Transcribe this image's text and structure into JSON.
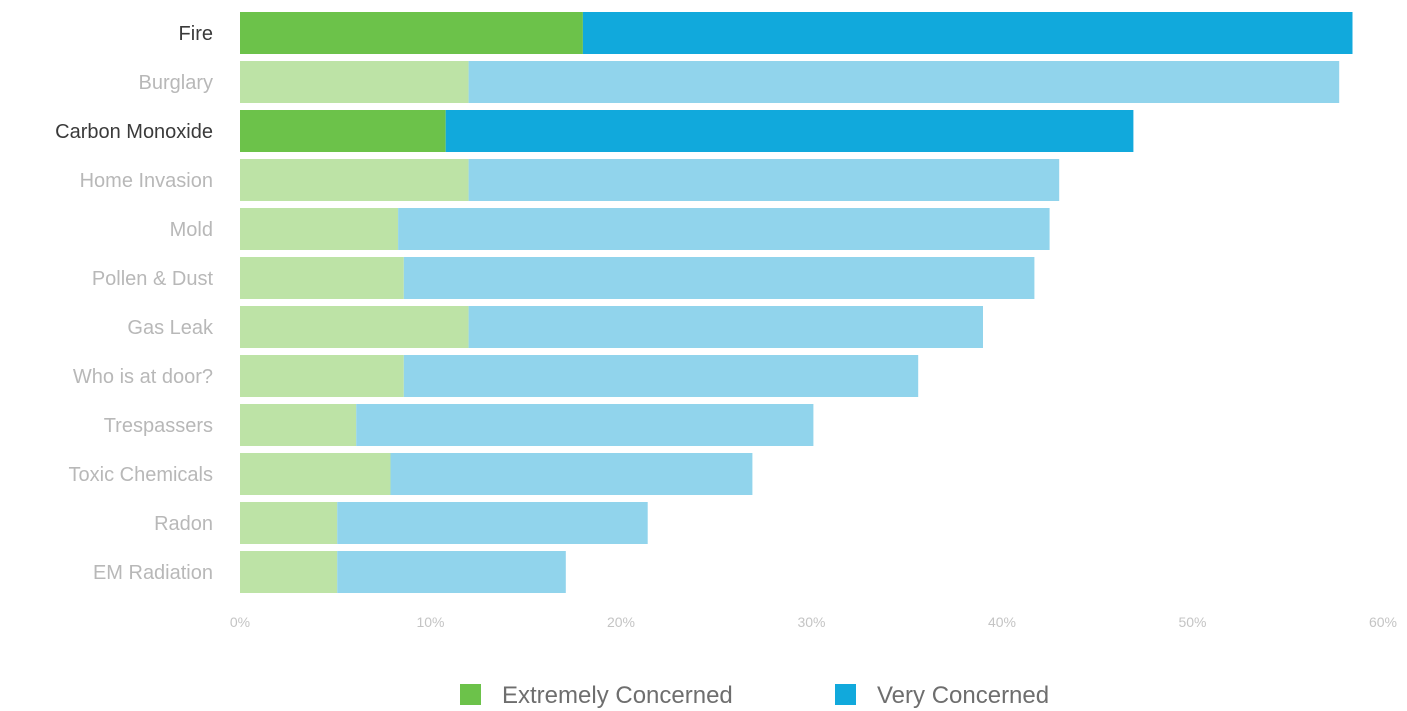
{
  "chart_data": {
    "type": "bar",
    "orientation": "horizontal",
    "stacked": true,
    "categories": [
      "Fire",
      "Burglary",
      "Carbon Monoxide",
      "Home Invasion",
      "Mold",
      "Pollen & Dust",
      "Gas Leak",
      "Who is at door?",
      "Trespassers",
      "Toxic Chemicals",
      "Radon",
      "EM Radiation"
    ],
    "highlighted": [
      "Fire",
      "Carbon Monoxide"
    ],
    "series": [
      {
        "name": "Extremely Concerned",
        "values": [
          18.0,
          12.0,
          10.8,
          12.0,
          8.3,
          8.6,
          12.0,
          8.6,
          6.1,
          7.9,
          5.1,
          5.1
        ]
      },
      {
        "name": "Very Concerned",
        "values": [
          40.4,
          45.7,
          36.1,
          31.0,
          34.2,
          33.1,
          27.0,
          27.0,
          24.0,
          19.0,
          16.3,
          12.0
        ]
      }
    ],
    "xlim": [
      0,
      60
    ],
    "x_ticks": [
      "0%",
      "10%",
      "20%",
      "30%",
      "40%",
      "50%",
      "60%"
    ],
    "grid": false,
    "legend_position": "bottom-center",
    "colors": {
      "extremely": "#6cc24a",
      "extremely_muted": "#bde3a6",
      "very": "#11a9dc",
      "very_muted": "#91d4ec",
      "label_highlight": "#3a3a3a",
      "label_muted": "#b8b8b8"
    }
  }
}
